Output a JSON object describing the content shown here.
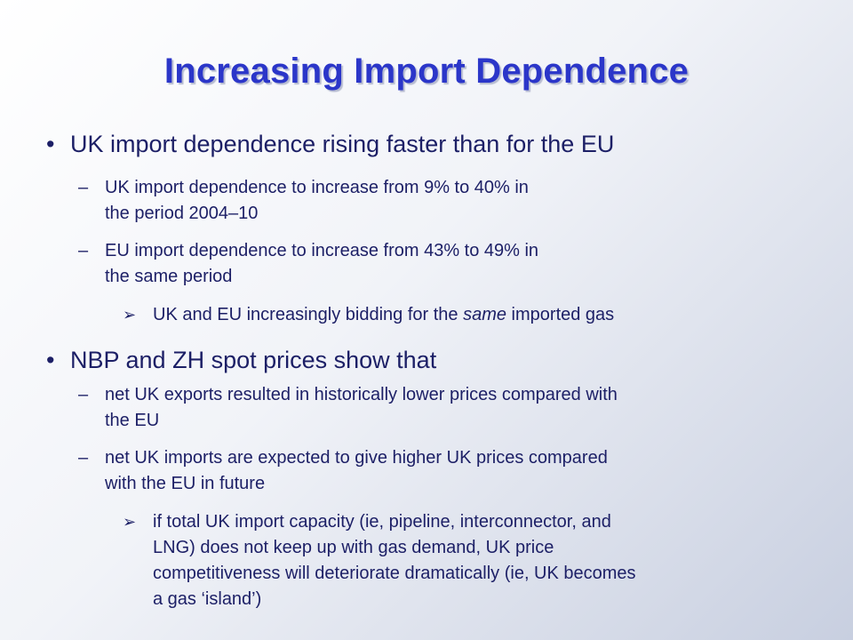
{
  "slide": {
    "title": "Increasing Import Dependence",
    "bullet_symbol": "•",
    "dash_symbol": "–",
    "arrow_symbol": "➢",
    "points": [
      {
        "text": "UK import dependence rising faster than for the EU",
        "subpoints": [
          {
            "line1": "UK import dependence to increase from 9% to 40% in",
            "line2": "the period 2004–10"
          },
          {
            "line1": "EU import dependence to increase from 43% to 49% in",
            "line2": "the same period"
          }
        ],
        "arrow": {
          "before": "UK and EU increasingly bidding for the ",
          "emphasis": "same",
          "after": " imported gas"
        }
      },
      {
        "text": "NBP and ZH spot prices show that",
        "subpoints": [
          {
            "line1": "net UK exports resulted in historically lower prices compared with",
            "line2": "the EU"
          },
          {
            "line1": "net UK imports are expected to give higher UK prices compared",
            "line2": "with the EU in future"
          }
        ],
        "arrow": {
          "line1": "if total UK import capacity (ie, pipeline, interconnector, and",
          "line2": "LNG) does not keep up with gas demand, UK price",
          "line3": "competitiveness will deteriorate dramatically (ie, UK becomes",
          "line4": "a gas ‘island’)"
        }
      }
    ]
  }
}
